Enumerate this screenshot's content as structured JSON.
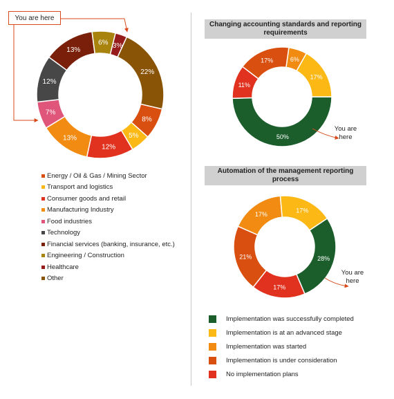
{
  "chart_data": [
    {
      "type": "pie",
      "title": "",
      "categories": [
        "Other",
        "Energy / Oil & Gas / Mining Sector",
        "Transport and logistics",
        "Consumer goods and retail",
        "Manufacturing Industry",
        "Food industries",
        "Technology",
        "Financial services (banking, insurance, etc.)",
        "Engineering / Construction",
        "Healthcare"
      ],
      "slices": [
        {
          "label": "Other",
          "value": 22,
          "color": "#8a5406"
        },
        {
          "label": "Energy / Oil & Gas / Mining Sector",
          "value": 8,
          "color": "#d94f0f"
        },
        {
          "label": "Transport and logistics",
          "value": 5,
          "color": "#fcb815"
        },
        {
          "label": "Consumer goods and retail",
          "value": 12,
          "color": "#e0321e"
        },
        {
          "label": "Manufacturing Industry",
          "value": 13,
          "color": "#f28b12"
        },
        {
          "label": "Food industries",
          "value": 7,
          "color": "#e0557a"
        },
        {
          "label": "Technology",
          "value": 12,
          "color": "#474747"
        },
        {
          "label": "Financial services (banking, insurance, etc.)",
          "value": 13,
          "color": "#7a200a"
        },
        {
          "label": "Engineering / Construction",
          "value": 6,
          "color": "#a8830e"
        },
        {
          "label": "Healthcare",
          "value": 3,
          "color": "#961b1b"
        }
      ],
      "data_labels": [
        "22%",
        "8%",
        "5%",
        "12%",
        "13%",
        "7%",
        "12%",
        "13%",
        "6%",
        "3%"
      ],
      "legend": {
        "position": "bottom",
        "items": [
          {
            "label": "Energy / Oil & Gas / Mining Sector",
            "color": "#d94f0f"
          },
          {
            "label": "Transport and logistics",
            "color": "#fcb815"
          },
          {
            "label": "Consumer goods and retail",
            "color": "#e0321e"
          },
          {
            "label": "Manufacturing Industry",
            "color": "#f28b12"
          },
          {
            "label": "Food industries",
            "color": "#e0557a"
          },
          {
            "label": "Technology",
            "color": "#474747"
          },
          {
            "label": "Financial services (banking, insurance, etc.)",
            "color": "#7a200a"
          },
          {
            "label": "Engineering / Construction",
            "color": "#a8830e"
          },
          {
            "label": "Healthcare",
            "color": "#961b1b"
          },
          {
            "label": "Other",
            "color": "#8a5406"
          }
        ]
      },
      "annotation": "You are here"
    },
    {
      "type": "pie",
      "title": "Changing accounting standards and reporting requirements",
      "categories": [
        "Implementation was successfully completed",
        "No implementation plans",
        "Implementation is under consideration",
        "Implementation was started",
        "Implementation is at an advanced stage"
      ],
      "slices": [
        {
          "label": "Implementation was successfully completed",
          "value": 50,
          "color": "#1b5e2c"
        },
        {
          "label": "No implementation plans",
          "value": 11,
          "color": "#e0321e"
        },
        {
          "label": "Implementation is under consideration",
          "value": 17,
          "color": "#d94f0f"
        },
        {
          "label": "Implementation was started",
          "value": 6,
          "color": "#f28b12"
        },
        {
          "label": "Implementation is at an advanced stage",
          "value": 17,
          "color": "#fcb815"
        }
      ],
      "data_labels": [
        "50%",
        "11%",
        "17%",
        "6%",
        "17%"
      ],
      "annotation": "You are here"
    },
    {
      "type": "pie",
      "title": "Automation of the management reporting process",
      "categories": [
        "Implementation was successfully completed",
        "No implementation plans",
        "Implementation is under consideration",
        "Implementation was started",
        "Implementation is at an advanced stage"
      ],
      "slices": [
        {
          "label": "Implementation was successfully completed",
          "value": 28,
          "color": "#1b5e2c"
        },
        {
          "label": "No implementation plans",
          "value": 17,
          "color": "#e0321e"
        },
        {
          "label": "Implementation is under consideration",
          "value": 21,
          "color": "#d94f0f"
        },
        {
          "label": "Implementation was started",
          "value": 17,
          "color": "#f28b12"
        },
        {
          "label": "Implementation is at an advanced stage",
          "value": 17,
          "color": "#fcb815"
        }
      ],
      "data_labels": [
        "28%",
        "17%",
        "21%",
        "17%",
        "17%"
      ],
      "annotation": "You are here"
    }
  ],
  "shared_legend": {
    "position": "bottom-right",
    "items": [
      {
        "label": "Implementation was successfully completed",
        "color": "#1b5e2c"
      },
      {
        "label": "Implementation is at an advanced stage",
        "color": "#fcb815"
      },
      {
        "label": "Implementation was started",
        "color": "#f28b12"
      },
      {
        "label": "Implementation is under consideration",
        "color": "#d94f0f"
      },
      {
        "label": "No implementation plans",
        "color": "#e0321e"
      }
    ]
  },
  "annotation_color": "#d84a1b"
}
